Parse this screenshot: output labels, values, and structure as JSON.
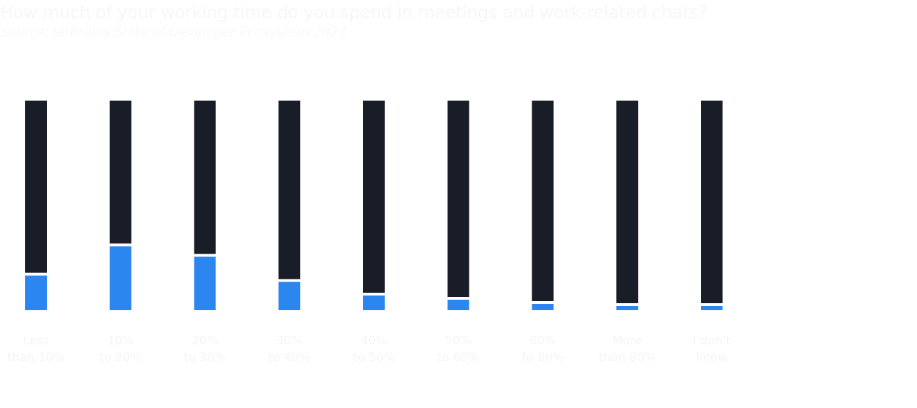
{
  "chart_data": {
    "type": "bar",
    "stacked": true,
    "title": "How much of your working time do you spend in meetings and work-related chats?",
    "subtitle": "Source: JetBrains State of Developer Ecosystem 2023",
    "categories": [
      [
        "Less",
        "than 10%"
      ],
      [
        "10%",
        "to 20%"
      ],
      [
        "20%",
        "to 30%"
      ],
      [
        "30%",
        "to 40%"
      ],
      [
        "40%",
        "to 50%"
      ],
      [
        "50%",
        "to 60%"
      ],
      [
        "60%",
        "to 80%"
      ],
      [
        "More",
        "than 80%"
      ],
      [
        "I don't",
        "know"
      ]
    ],
    "series": [
      {
        "values": [
          16.5,
          30.5,
          25.5,
          13.5,
          7,
          5,
          3,
          2,
          2
        ]
      },
      {
        "values": [
          83.5,
          69.5,
          74.5,
          86.5,
          93,
          95,
          97,
          98,
          98
        ]
      }
    ],
    "ylim": [
      0,
      100
    ],
    "grid": false,
    "colors": {
      "series_0": "#2b87ef",
      "series_1": "#191d28",
      "separator": "#ffffff",
      "title_text": "#f7f7f8",
      "subtitle_text": "#f9f9fa",
      "tick_text": "#f5f5f6"
    }
  }
}
